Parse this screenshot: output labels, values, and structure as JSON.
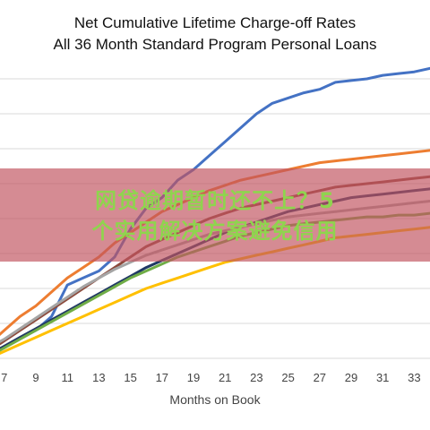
{
  "chart_data": {
    "type": "line",
    "title": "Net Cumulative Lifetime Charge-off Rates",
    "subtitle": "All 36 Month Standard Program Personal Loans",
    "xlabel": "Months on Book",
    "ylabel": "",
    "x_tick_labels": [
      "7",
      "9",
      "11",
      "13",
      "15",
      "17",
      "19",
      "21",
      "23",
      "25",
      "27",
      "29",
      "31",
      "33"
    ],
    "x": [
      6,
      7,
      8,
      9,
      10,
      11,
      12,
      13,
      14,
      15,
      16,
      17,
      18,
      19,
      20,
      21,
      22,
      23,
      24,
      25,
      26,
      27,
      28,
      29,
      30,
      31,
      32,
      33,
      34
    ],
    "xlim": [
      6.5,
      34
    ],
    "ylim": [
      0,
      8
    ],
    "grid": true,
    "legend": "none",
    "series": [
      {
        "color": "#4472c4",
        "values": [
          0.1,
          0.3,
          0.6,
          0.8,
          1.2,
          2.1,
          2.3,
          2.5,
          2.9,
          3.7,
          4.3,
          4.6,
          5.1,
          5.4,
          5.8,
          6.2,
          6.6,
          7.0,
          7.3,
          7.45,
          7.6,
          7.7,
          7.9,
          7.95,
          8.0,
          8.1,
          8.15,
          8.2,
          8.3
        ]
      },
      {
        "color": "#ed7d31",
        "values": [
          0.4,
          0.8,
          1.2,
          1.5,
          1.9,
          2.3,
          2.6,
          2.9,
          3.3,
          3.6,
          3.9,
          4.2,
          4.4,
          4.6,
          4.8,
          4.95,
          5.1,
          5.2,
          5.3,
          5.4,
          5.5,
          5.6,
          5.65,
          5.7,
          5.75,
          5.8,
          5.85,
          5.9,
          5.95
        ]
      },
      {
        "color": "#8c4a3c",
        "values": [
          0.2,
          0.5,
          0.8,
          1.1,
          1.4,
          1.7,
          2.0,
          2.3,
          2.6,
          2.9,
          3.2,
          3.4,
          3.6,
          3.8,
          4.0,
          4.15,
          4.3,
          4.4,
          4.5,
          4.6,
          4.7,
          4.8,
          4.9,
          4.95,
          5.0,
          5.05,
          5.1,
          5.15,
          5.2
        ]
      },
      {
        "color": "#1f3864",
        "values": [
          0.1,
          0.35,
          0.6,
          0.85,
          1.1,
          1.35,
          1.6,
          1.85,
          2.1,
          2.35,
          2.6,
          2.8,
          3.0,
          3.2,
          3.4,
          3.6,
          3.75,
          3.9,
          4.05,
          4.2,
          4.3,
          4.4,
          4.5,
          4.6,
          4.65,
          4.7,
          4.75,
          4.8,
          4.85
        ]
      },
      {
        "color": "#a5a5a5",
        "values": [
          0.3,
          0.55,
          0.85,
          1.15,
          1.45,
          1.75,
          2.05,
          2.3,
          2.55,
          2.75,
          2.95,
          3.1,
          3.25,
          3.4,
          3.55,
          3.65,
          3.75,
          3.85,
          3.95,
          4.05,
          4.1,
          4.15,
          4.2,
          4.25,
          4.3,
          4.35,
          4.4,
          4.45,
          4.5
        ]
      },
      {
        "color": "#70ad47",
        "values": [
          0.05,
          0.3,
          0.55,
          0.8,
          1.05,
          1.3,
          1.55,
          1.8,
          2.05,
          2.3,
          2.5,
          2.7,
          2.9,
          3.05,
          3.2,
          3.35,
          3.5,
          3.6,
          3.7,
          3.8,
          3.85,
          3.9,
          3.95,
          4.0,
          4.05,
          4.05,
          4.1,
          4.1,
          4.15
        ]
      },
      {
        "color": "#ffc000",
        "values": [
          0.0,
          0.2,
          0.4,
          0.6,
          0.8,
          1.0,
          1.2,
          1.4,
          1.6,
          1.8,
          2.0,
          2.15,
          2.3,
          2.45,
          2.6,
          2.75,
          2.85,
          2.95,
          3.05,
          3.15,
          3.25,
          3.35,
          3.45,
          3.5,
          3.55,
          3.6,
          3.65,
          3.7,
          3.75
        ]
      }
    ]
  },
  "overlay": {
    "line1": "网贷逾期暂时还不上？5",
    "line2": "个实用解决方案避免信用"
  }
}
